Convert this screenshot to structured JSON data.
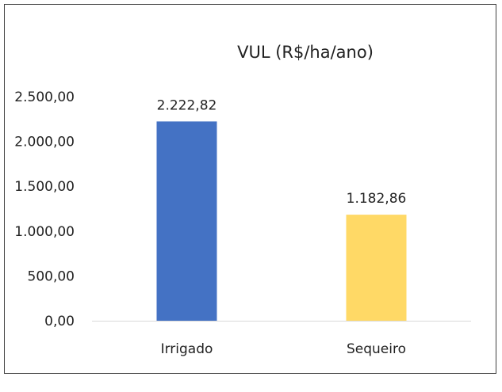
{
  "chart_data": {
    "type": "bar",
    "title": "VUL (R$/ha/ano)",
    "categories": [
      "Irrigado",
      "Sequeiro"
    ],
    "values": [
      2222.82,
      1182.86
    ],
    "value_labels": [
      "2.222,82",
      "1.182,86"
    ],
    "colors": [
      "#4472C4",
      "#FFD966"
    ],
    "ylim": [
      0,
      2500
    ],
    "yticks": [
      0,
      500,
      1000,
      1500,
      2000,
      2500
    ],
    "ytick_labels": [
      "0,00",
      "500,00",
      "1.000,00",
      "1.500,00",
      "2.000,00",
      "2.500,00"
    ],
    "xlabel": "",
    "ylabel": "",
    "grid": false,
    "legend": "none"
  }
}
